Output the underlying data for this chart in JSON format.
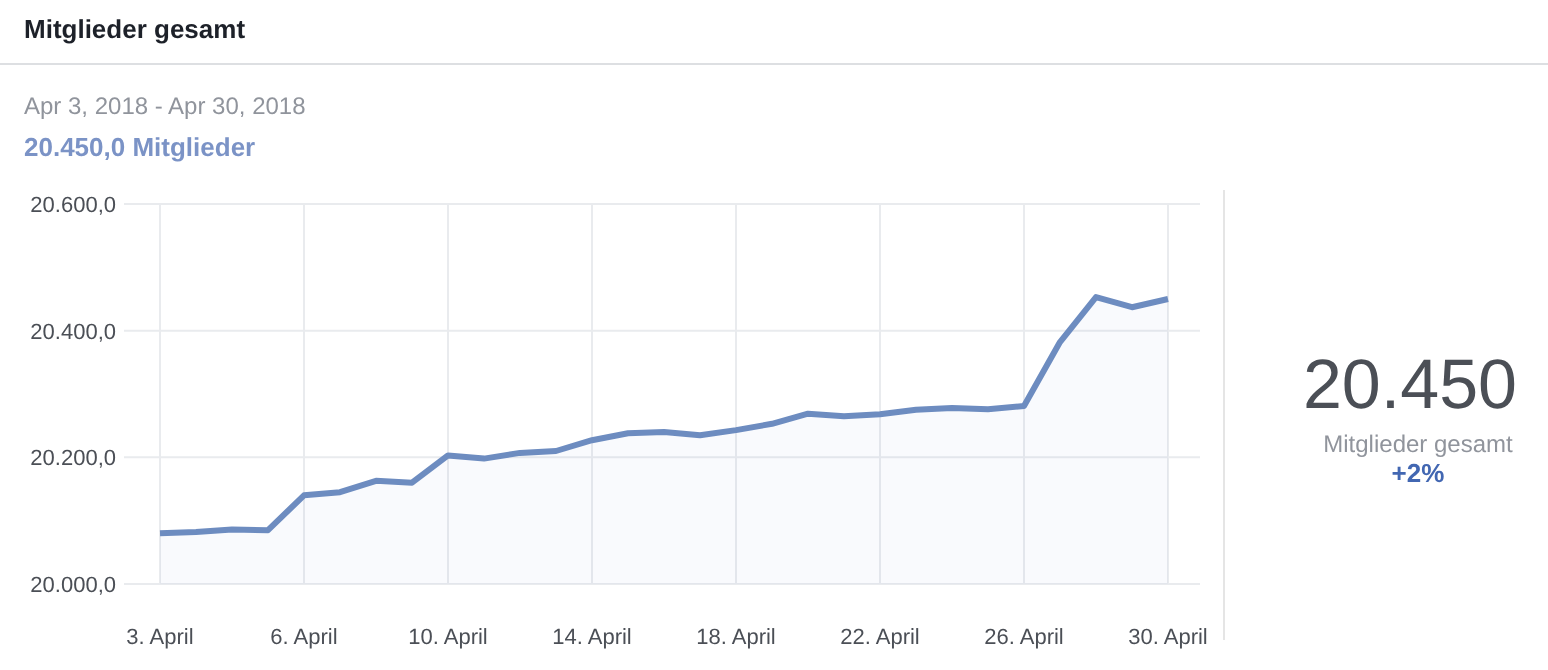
{
  "chart_data": {
    "type": "area",
    "title": "Mitglieder gesamt",
    "subtitle": "Apr 3, 2018 - Apr 30, 2018",
    "annotations": [
      "20.450,0 Mitglieder",
      "20.450",
      "Mitglieder gesamt",
      "+2%"
    ],
    "categories": [
      "3. April",
      null,
      null,
      null,
      "6. April",
      null,
      null,
      null,
      "10. April",
      null,
      null,
      null,
      "14. April",
      null,
      null,
      null,
      "18. April",
      null,
      null,
      null,
      "22. April",
      null,
      null,
      null,
      "26. April",
      null,
      null,
      null,
      "30. April"
    ],
    "series": [
      {
        "color": "#6d8cc0",
        "values": [
          20080,
          20082,
          20086,
          20085,
          20140,
          20145,
          20163,
          20160,
          20203,
          20198,
          20207,
          20210,
          20227,
          20238,
          20240,
          20235,
          20243,
          20253,
          20269,
          20265,
          20268,
          20275,
          20278,
          20276,
          20281,
          20382,
          20453,
          20437,
          20450
        ]
      }
    ],
    "ylim": [
      20000,
      20600
    ],
    "yticks": [
      {
        "value": 20000,
        "label": "20.000,0"
      },
      {
        "value": 20200,
        "label": "20.200,0"
      },
      {
        "value": 20400,
        "label": "20.400,0"
      },
      {
        "value": 20600,
        "label": "20.600,0"
      }
    ],
    "grid": true
  }
}
